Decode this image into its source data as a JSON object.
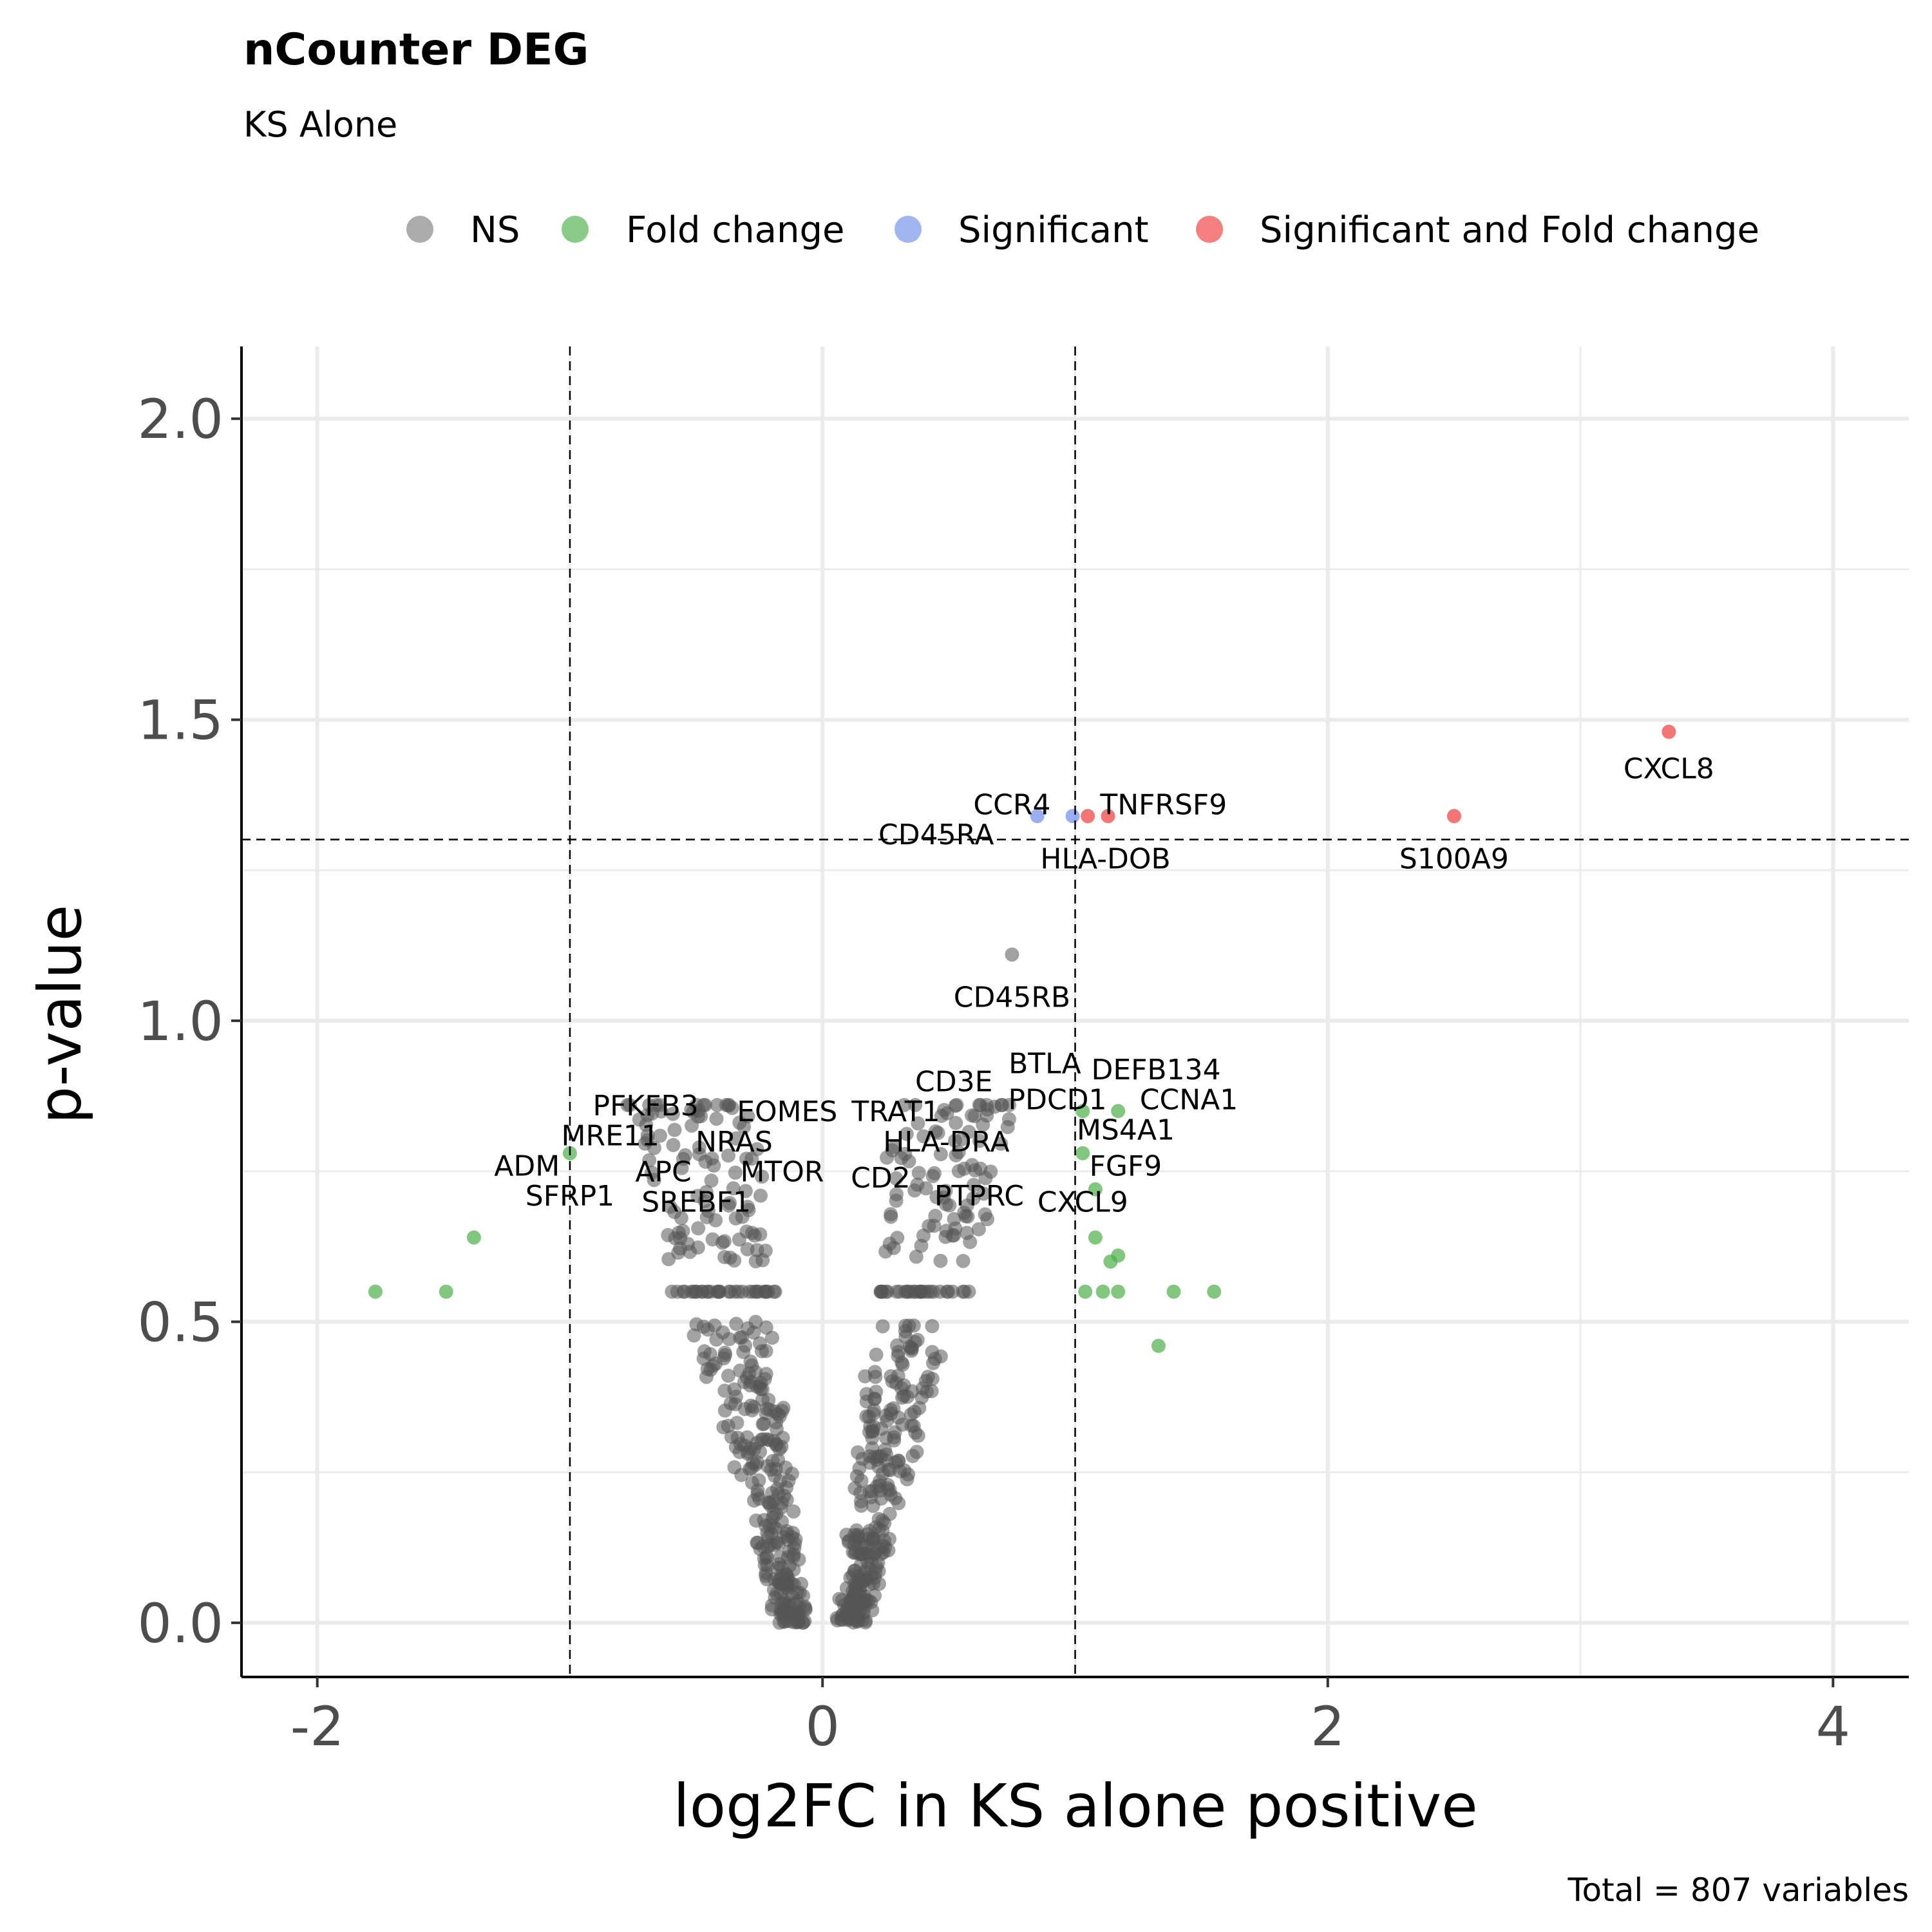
{
  "chart_data": {
    "type": "scatter",
    "title": "nCounter DEG",
    "subtitle": "KS Alone",
    "xlabel": "log2FC in KS alone positive",
    "ylabel": "p-value",
    "caption": "Total = 807 variables",
    "xlim": [
      -2.3,
      4.3
    ],
    "ylim": [
      -0.09,
      2.12
    ],
    "x_ticks": [
      {
        "value": -2,
        "label": "-2"
      },
      {
        "value": 0,
        "label": "0"
      },
      {
        "value": 2,
        "label": "2"
      },
      {
        "value": 4,
        "label": "4"
      }
    ],
    "y_ticks": [
      {
        "value": 0.0,
        "label": "0.0"
      },
      {
        "value": 0.5,
        "label": "0.5"
      },
      {
        "value": 1.0,
        "label": "1.0"
      },
      {
        "value": 1.5,
        "label": "1.5"
      },
      {
        "value": 2.0,
        "label": "2.0"
      }
    ],
    "x_minor_grid": [
      -1,
      1,
      3
    ],
    "y_minor_grid": [
      0.25,
      0.75,
      1.25,
      1.75
    ],
    "thresholds": {
      "log2fc": [
        -1,
        1
      ],
      "p": 1.301
    },
    "grid": true,
    "legend_position": "top",
    "legend": [
      {
        "label": "NS",
        "color": "#7f7f7f"
      },
      {
        "label": "Fold change",
        "color": "#4daf4a"
      },
      {
        "label": "Significant",
        "color": "#6f8de8"
      },
      {
        "label": "Significant and Fold change",
        "color": "#ee3b3b"
      }
    ],
    "colors": {
      "ns": "#555555",
      "fold_change": "#4daf4a",
      "significant": "#6f8de8",
      "sig_and_fc": "#ee3b3b"
    },
    "highlighted_points": [
      {
        "x": 3.35,
        "y": 1.48,
        "category": "sig_and_fc"
      },
      {
        "x": 2.5,
        "y": 1.34,
        "category": "sig_and_fc"
      },
      {
        "x": 1.05,
        "y": 1.34,
        "category": "sig_and_fc"
      },
      {
        "x": 1.13,
        "y": 1.34,
        "category": "sig_and_fc"
      },
      {
        "x": 0.85,
        "y": 1.34,
        "category": "significant"
      },
      {
        "x": 0.99,
        "y": 1.34,
        "category": "significant"
      },
      {
        "x": -1.77,
        "y": 0.55,
        "category": "fold_change"
      },
      {
        "x": -1.49,
        "y": 0.55,
        "category": "fold_change"
      },
      {
        "x": -1.38,
        "y": 0.64,
        "category": "fold_change"
      },
      {
        "x": -1.0,
        "y": 0.78,
        "category": "fold_change"
      },
      {
        "x": 1.04,
        "y": 0.55,
        "category": "fold_change"
      },
      {
        "x": 1.11,
        "y": 0.55,
        "category": "fold_change"
      },
      {
        "x": 1.17,
        "y": 0.55,
        "category": "fold_change"
      },
      {
        "x": 1.39,
        "y": 0.55,
        "category": "fold_change"
      },
      {
        "x": 1.55,
        "y": 0.55,
        "category": "fold_change"
      },
      {
        "x": 1.33,
        "y": 0.46,
        "category": "fold_change"
      },
      {
        "x": 1.08,
        "y": 0.64,
        "category": "fold_change"
      },
      {
        "x": 1.14,
        "y": 0.6,
        "category": "fold_change"
      },
      {
        "x": 1.17,
        "y": 0.61,
        "category": "fold_change"
      },
      {
        "x": 1.03,
        "y": 0.78,
        "category": "fold_change"
      },
      {
        "x": 1.08,
        "y": 0.72,
        "category": "fold_change"
      },
      {
        "x": 1.03,
        "y": 0.85,
        "category": "fold_change"
      },
      {
        "x": 1.17,
        "y": 0.85,
        "category": "fold_change"
      }
    ],
    "labels": [
      {
        "text": "CXCL8",
        "x": 3.35,
        "y": 1.42
      },
      {
        "text": "S100A9",
        "x": 2.5,
        "y": 1.27
      },
      {
        "text": "CCR4",
        "x": 0.75,
        "y": 1.36
      },
      {
        "text": "TNFRSF9",
        "x": 1.35,
        "y": 1.36
      },
      {
        "text": "CD45RA",
        "x": 0.45,
        "y": 1.31
      },
      {
        "text": "HLA-DOB",
        "x": 1.12,
        "y": 1.27
      },
      {
        "text": "CD45RB",
        "x": 0.75,
        "y": 1.04
      },
      {
        "text": "CD3E",
        "x": 0.52,
        "y": 0.9
      },
      {
        "text": "BTLA",
        "x": 0.88,
        "y": 0.93
      },
      {
        "text": "DEFB134",
        "x": 1.32,
        "y": 0.92
      },
      {
        "text": "PDCD1",
        "x": 0.93,
        "y": 0.87
      },
      {
        "text": "CCNA1",
        "x": 1.45,
        "y": 0.87
      },
      {
        "text": "MS4A1",
        "x": 1.2,
        "y": 0.82
      },
      {
        "text": "PFKFB3",
        "x": -0.7,
        "y": 0.86
      },
      {
        "text": "EOMES",
        "x": -0.14,
        "y": 0.85
      },
      {
        "text": "TRAT1",
        "x": 0.29,
        "y": 0.85
      },
      {
        "text": "MRE11",
        "x": -0.84,
        "y": 0.81
      },
      {
        "text": "NRAS",
        "x": -0.35,
        "y": 0.8
      },
      {
        "text": "HLA-DRA",
        "x": 0.49,
        "y": 0.8
      },
      {
        "text": "ADM",
        "x": -1.17,
        "y": 0.76
      },
      {
        "text": "APC",
        "x": -0.63,
        "y": 0.75
      },
      {
        "text": "MTOR",
        "x": -0.16,
        "y": 0.75
      },
      {
        "text": "CD2",
        "x": 0.23,
        "y": 0.74
      },
      {
        "text": "FGF9",
        "x": 1.2,
        "y": 0.76
      },
      {
        "text": "SFRP1",
        "x": -1.0,
        "y": 0.71
      },
      {
        "text": "SREBF1",
        "x": -0.5,
        "y": 0.7
      },
      {
        "text": "PTPRC",
        "x": 0.62,
        "y": 0.71
      },
      {
        "text": "CXCL9",
        "x": 1.03,
        "y": 0.7
      }
    ],
    "ns_point_count": 784,
    "total_variables": 807
  }
}
